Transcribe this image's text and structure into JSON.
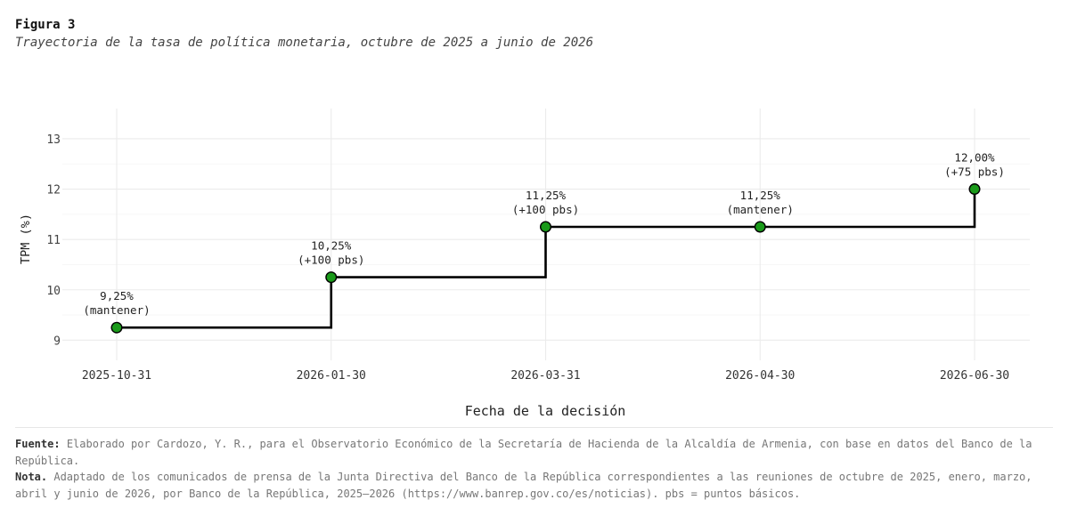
{
  "figure": {
    "label": "Figura 3",
    "title": "Trayectoria de la tasa de política monetaria, octubre de 2025 a junio de 2026"
  },
  "notes": {
    "source_label": "Fuente:",
    "source_text": "Elaborado por Cardozo, Y. R., para el Observatorio Económico de la Secretaría de Hacienda de la Alcaldía de Armenia, con base en datos del Banco de la República.",
    "note_label": "Nota.",
    "note_text": "Adaptado de los comunicados de prensa de la Junta Directiva del Banco de la República correspondientes a las reuniones de octubre de 2025, enero, marzo, abril y junio de 2026, por Banco de la República, 2025–2026 (https://www.banrep.gov.co/es/noticias). pbs = puntos básicos."
  },
  "chart_data": {
    "type": "line",
    "step": "post",
    "x": [
      "2025-10-31",
      "2026-01-30",
      "2026-03-31",
      "2026-04-30",
      "2026-06-30"
    ],
    "y": [
      9.25,
      10.25,
      11.25,
      11.25,
      12.0
    ],
    "point_labels": [
      [
        "9,25%",
        "(mantener)"
      ],
      [
        "10,25%",
        "(+100 pbs)"
      ],
      [
        "11,25%",
        "(+100 pbs)"
      ],
      [
        "11,25%",
        "(mantener)"
      ],
      [
        "12,00%",
        "(+75 pbs)"
      ]
    ],
    "xlabel": "Fecha de la decisión",
    "ylabel": "TPM (%)",
    "ylim": [
      8.6,
      13.6
    ],
    "yticks": [
      9,
      10,
      11,
      12,
      13
    ],
    "grid": true,
    "colors": {
      "line": "#000000",
      "marker": "#1a9a1a",
      "grid": "#ebebeb"
    }
  }
}
